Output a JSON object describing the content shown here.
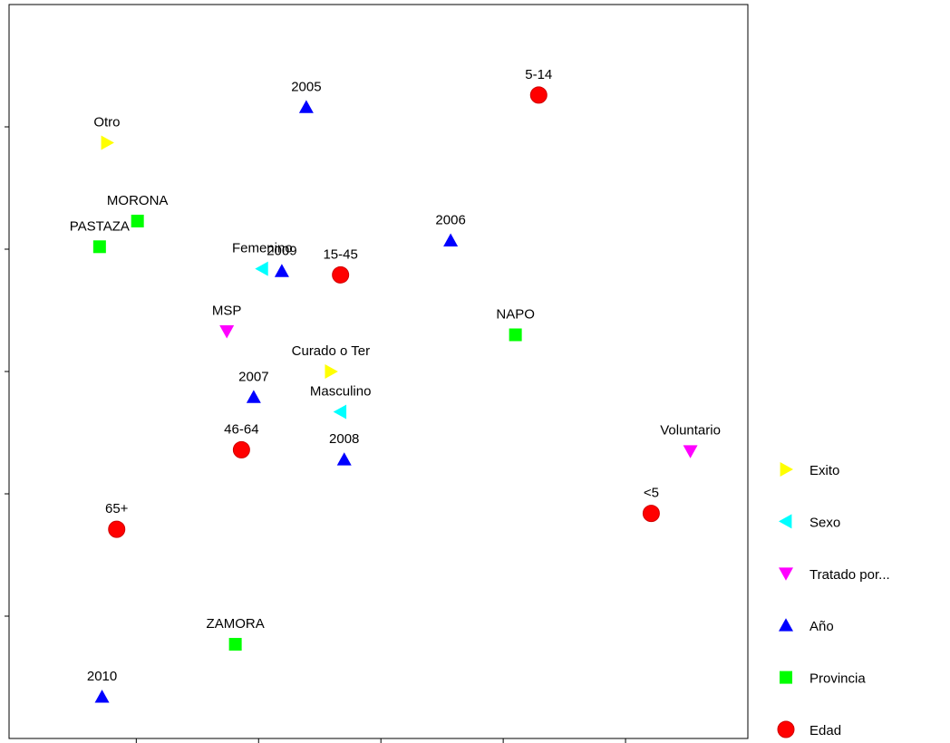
{
  "chart_data": {
    "type": "scatter",
    "xlim": [
      -0.04,
      6.0
    ],
    "ylim": [
      0,
      6.0
    ],
    "xticks": [
      1,
      2,
      3,
      4,
      5
    ],
    "yticks": [
      1,
      2,
      3,
      4,
      5
    ],
    "series": [
      {
        "name": "Exito",
        "color": "#ffff00",
        "marker": "triangle-right",
        "labels": [
          "Otro",
          "Curado o Ter"
        ],
        "x": [
          0.76,
          2.59
        ],
        "values": [
          4.87,
          3.0
        ]
      },
      {
        "name": "Sexo",
        "color": "#00ffff",
        "marker": "triangle-left",
        "labels": [
          "Femenino",
          "Masculino"
        ],
        "x": [
          2.03,
          2.67
        ],
        "values": [
          3.84,
          2.67
        ]
      },
      {
        "name": "Tratado por...",
        "color": "#ff00ff",
        "marker": "triangle-down",
        "labels": [
          "MSP",
          "Voluntario"
        ],
        "x": [
          1.74,
          5.53
        ],
        "values": [
          3.33,
          2.35
        ]
      },
      {
        "name": "Año",
        "color": "#0000ff",
        "marker": "triangle-up",
        "labels": [
          "2005",
          "2006",
          "2009",
          "2007",
          "2008",
          "2010"
        ],
        "x": [
          2.39,
          3.57,
          2.19,
          1.96,
          2.7,
          0.72
        ],
        "values": [
          5.16,
          4.07,
          3.82,
          2.79,
          2.28,
          0.34
        ]
      },
      {
        "name": "Provincia",
        "color": "#00ff00",
        "marker": "square",
        "labels": [
          "MORONA",
          "PASTAZA",
          "NAPO",
          "ZAMORA"
        ],
        "x": [
          1.01,
          0.7,
          4.1,
          1.81
        ],
        "values": [
          4.23,
          4.02,
          3.3,
          0.77
        ]
      },
      {
        "name": "Edad",
        "color": "#ff0000",
        "marker": "circle",
        "labels": [
          "5-14",
          "15-45",
          "46-64",
          "<5",
          "65+"
        ],
        "x": [
          4.29,
          2.67,
          1.86,
          5.21,
          0.84
        ],
        "values": [
          5.26,
          3.79,
          2.36,
          1.84,
          1.71
        ]
      }
    ]
  }
}
